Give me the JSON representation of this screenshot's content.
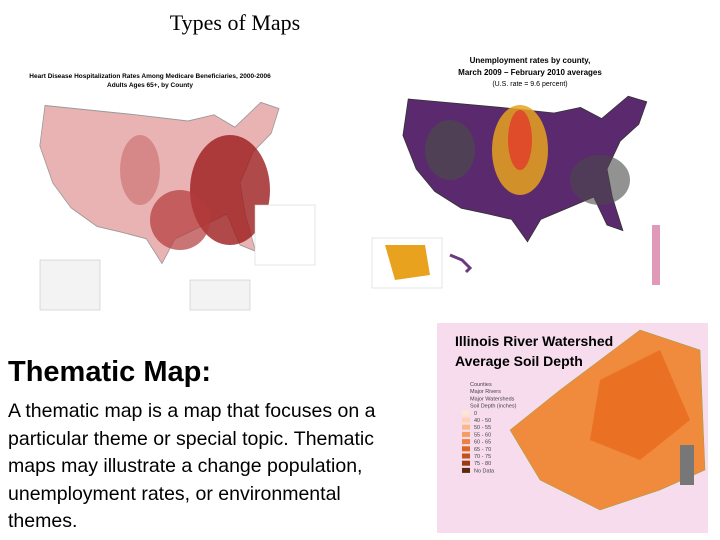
{
  "header": {
    "title": "Types of Maps"
  },
  "maps": [
    {
      "title": "Heart Disease Hospitalization Rates Among Medicare Beneficiaries, 2000-2006",
      "subtitle": "Adults Ages 65+, by County"
    },
    {
      "title": "Unemployment rates by county,",
      "subtitle": "March 2009 – February 2010 averages",
      "note": "(U.S. rate = 9.6 percent)"
    },
    {
      "title": "Illinois River Watershed",
      "subtitle": "Average Soil Depth",
      "legend": [
        "Counties",
        "Major Rivers",
        "Major Watersheds",
        "Soil Depth (inches)",
        "0",
        "40 - 50",
        "50 - 55",
        "55 - 60",
        "60 - 65",
        "65 - 70",
        "70 - 75",
        "75 - 80",
        "No Data"
      ]
    }
  ],
  "section": {
    "heading": "Thematic Map:",
    "body_lines": [
      "A thematic map is a map that focuses on a",
      "particular theme or special topic.  Thematic",
      "maps may illustrate a change population,",
      "unemployment rates, or environmental",
      "themes."
    ]
  }
}
